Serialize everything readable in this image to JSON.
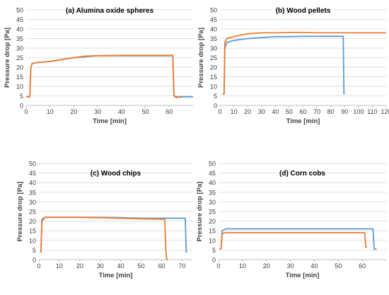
{
  "colors": {
    "series_blue": "#5b9bd5",
    "series_orange": "#ed7d31",
    "gridline": "#d9d9d9",
    "axis": "#bfbfbf",
    "text": "#000000"
  },
  "chart_data": [
    {
      "type": "line",
      "title": "(a) Alumina oxide spheres",
      "xlabel": "Time [min]",
      "ylabel": "Pressure drop [Pa]",
      "xlim": [
        0,
        70
      ],
      "ylim": [
        0,
        50
      ],
      "xticks": [
        0,
        10,
        20,
        30,
        40,
        50,
        60
      ],
      "yticks": [
        0,
        5,
        10,
        15,
        20,
        25,
        30,
        35,
        40,
        45,
        50
      ],
      "grid": "horizontal",
      "series": [
        {
          "color": "#5b9bd5",
          "x": [
            0,
            1.5,
            2,
            2.5,
            5,
            10,
            15,
            20,
            25,
            30,
            40,
            50,
            60,
            61.5,
            62,
            63,
            64,
            66,
            70
          ],
          "y": [
            4.5,
            4.5,
            20,
            22,
            22.5,
            23,
            24,
            25,
            25.5,
            26,
            26,
            26,
            26,
            26,
            5,
            4.5,
            4.5,
            4.5,
            4.5
          ]
        },
        {
          "color": "#ed7d31",
          "x": [
            0,
            1.5,
            2,
            2.5,
            5,
            10,
            15,
            20,
            25,
            30,
            40,
            50,
            60,
            61.5,
            62,
            63,
            64,
            65
          ],
          "y": [
            4.5,
            4.5,
            20,
            22,
            22.5,
            23,
            24,
            25,
            25.8,
            26,
            26.2,
            26.2,
            26.2,
            26.2,
            5,
            4,
            4.5,
            4
          ]
        }
      ]
    },
    {
      "type": "line",
      "title": "(b) Wood pellets",
      "xlabel": "Time [min]",
      "ylabel": "Pressure drop [Pa]",
      "xlim": [
        0,
        120
      ],
      "ylim": [
        0,
        50
      ],
      "xticks": [
        0,
        10,
        20,
        30,
        40,
        50,
        60,
        70,
        80,
        90,
        100,
        110,
        120
      ],
      "yticks": [
        0,
        5,
        10,
        15,
        20,
        25,
        30,
        35,
        40,
        45,
        50
      ],
      "grid": "horizontal",
      "series": [
        {
          "color": "#5b9bd5",
          "x": [
            2,
            3,
            3.5,
            5,
            10,
            20,
            30,
            40,
            50,
            60,
            70,
            80,
            88,
            89,
            89.5,
            90
          ],
          "y": [
            6,
            6,
            30,
            33,
            34,
            35,
            35.5,
            36,
            36,
            36.2,
            36.2,
            36.2,
            36.2,
            36.2,
            6,
            6
          ]
        },
        {
          "color": "#ed7d31",
          "x": [
            2,
            3,
            3.5,
            5,
            10,
            20,
            30,
            40,
            50,
            60,
            70,
            80,
            90,
            100,
            110,
            120
          ],
          "y": [
            6,
            6,
            33,
            35,
            36,
            37.5,
            38,
            38,
            38.2,
            38.2,
            38,
            38,
            38,
            38,
            38,
            38
          ]
        }
      ]
    },
    {
      "type": "line",
      "title": "(c) Wood chips",
      "xlabel": "Time [min]",
      "ylabel": "Pressure drop [Pa]",
      "xlim": [
        0,
        75
      ],
      "ylim": [
        0,
        50
      ],
      "xticks": [
        0,
        10,
        20,
        30,
        40,
        50,
        60,
        70
      ],
      "yticks": [
        0,
        5,
        10,
        15,
        20,
        25,
        30,
        35,
        40,
        45,
        50
      ],
      "grid": "horizontal",
      "series": [
        {
          "color": "#5b9bd5",
          "x": [
            0.5,
            1,
            1.5,
            3,
            10,
            20,
            30,
            40,
            50,
            60,
            65,
            70,
            71.5,
            72,
            72.5
          ],
          "y": [
            4,
            4,
            20,
            22,
            22,
            22,
            22,
            21.8,
            21.5,
            21.5,
            21.5,
            21.5,
            21.5,
            4,
            4
          ]
        },
        {
          "color": "#ed7d31",
          "x": [
            0.5,
            1,
            1.5,
            3,
            10,
            20,
            30,
            40,
            50,
            60,
            61.5,
            62,
            62.5,
            63
          ],
          "y": [
            4,
            4,
            21,
            22,
            22,
            22,
            21.8,
            21.5,
            21.2,
            21,
            21,
            5,
            0,
            0
          ]
        }
      ]
    },
    {
      "type": "line",
      "title": "(d) Corn cobs",
      "xlabel": "Time [min]",
      "ylabel": "Pressure drop [Pa]",
      "xlim": [
        0,
        70
      ],
      "ylim": [
        0,
        50
      ],
      "xticks": [
        0,
        10,
        20,
        30,
        40,
        50,
        60
      ],
      "yticks": [
        0,
        5,
        10,
        15,
        20,
        25,
        30,
        35,
        40,
        45,
        50
      ],
      "grid": "horizontal",
      "series": [
        {
          "color": "#5b9bd5",
          "x": [
            0.5,
            1,
            1.5,
            3,
            10,
            20,
            30,
            40,
            50,
            60,
            64.5,
            65,
            66
          ],
          "y": [
            5.5,
            5.5,
            15,
            16,
            16,
            16,
            16,
            16,
            16,
            16,
            16,
            5.5,
            5.5
          ]
        },
        {
          "color": "#ed7d31",
          "x": [
            0.5,
            1,
            1.5,
            3,
            10,
            20,
            30,
            40,
            50,
            60,
            61,
            61.5,
            62
          ],
          "y": [
            5.5,
            5.5,
            13.5,
            14,
            14,
            14,
            14,
            14,
            14,
            14,
            14,
            6.5,
            6.5
          ]
        }
      ]
    }
  ]
}
